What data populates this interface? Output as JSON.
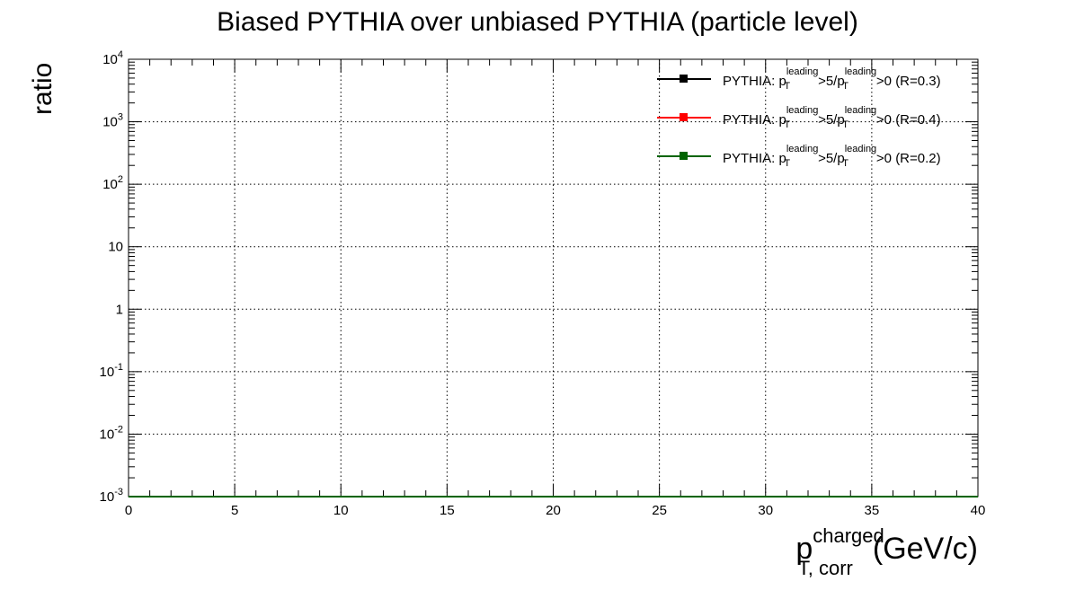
{
  "chart_data": {
    "type": "line",
    "title": "Biased PYTHIA over unbiased PYTHIA (particle level)",
    "ylabel": "ratio",
    "xlabel": {
      "base": "p",
      "superscript": "charged",
      "subscript": "T, corr",
      "unit": "(GeV/c)"
    },
    "xlim": [
      0,
      40
    ],
    "ylim": [
      0.001,
      10000
    ],
    "yscale": "log",
    "grid": true,
    "x_ticks": [
      {
        "value": 0,
        "label": "0"
      },
      {
        "value": 5,
        "label": "5"
      },
      {
        "value": 10,
        "label": "10"
      },
      {
        "value": 15,
        "label": "15"
      },
      {
        "value": 20,
        "label": "20"
      },
      {
        "value": 25,
        "label": "25"
      },
      {
        "value": 30,
        "label": "30"
      },
      {
        "value": 35,
        "label": "35"
      },
      {
        "value": 40,
        "label": "40"
      }
    ],
    "y_ticks": [
      {
        "value": 0.001,
        "base": "10",
        "exp": "-3"
      },
      {
        "value": 0.01,
        "base": "10",
        "exp": "-2"
      },
      {
        "value": 0.1,
        "base": "10",
        "exp": "-1"
      },
      {
        "value": 1,
        "base": "1",
        "exp": ""
      },
      {
        "value": 10,
        "base": "10",
        "exp": ""
      },
      {
        "value": 100,
        "base": "10",
        "exp": "2"
      },
      {
        "value": 1000,
        "base": "10",
        "exp": "3"
      },
      {
        "value": 10000,
        "base": "10",
        "exp": "4"
      }
    ],
    "legend_position": "top-right",
    "series": [
      {
        "name": "PYTHIA: p_T^leading>5/p_T^leading>0 (R=0.3)",
        "label_parts": {
          "prefix": "PYTHIA: p",
          "sup1": "leading",
          "sub1": "T",
          "mid": ">5/p",
          "sup2": "leading",
          "sub2": "T",
          "suffix": ">0 (R=0.3)"
        },
        "color": "#000000",
        "x": [
          0,
          40
        ],
        "y": [
          0.001,
          0.001
        ]
      },
      {
        "name": "PYTHIA: p_T^leading>5/p_T^leading>0 (R=0.4)",
        "label_parts": {
          "prefix": "PYTHIA: p",
          "sup1": "leading",
          "sub1": "T",
          "mid": ">5/p",
          "sup2": "leading",
          "sub2": "T",
          "suffix": ">0 (R=0.4)"
        },
        "color": "#ff0000",
        "x": [
          0,
          40
        ],
        "y": [
          0.001,
          0.001
        ]
      },
      {
        "name": "PYTHIA: p_T^leading>5/p_T^leading>0 (R=0.2)",
        "label_parts": {
          "prefix": "PYTHIA: p",
          "sup1": "leading",
          "sub1": "T",
          "mid": ">5/p",
          "sup2": "leading",
          "sub2": "T",
          "suffix": ">0 (R=0.2)"
        },
        "color": "#006400",
        "x": [
          0,
          40
        ],
        "y": [
          0.001,
          0.001
        ]
      }
    ]
  }
}
